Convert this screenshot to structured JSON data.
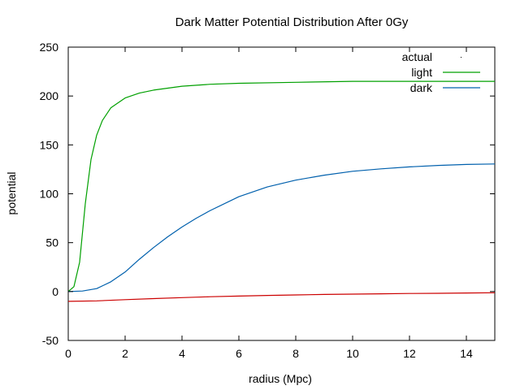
{
  "chart_data": {
    "type": "line",
    "title": "Dark Matter Potential Distribution After 0Gy",
    "xlabel": "radius (Mpc)",
    "ylabel": "potential",
    "xlim": [
      0,
      15
    ],
    "ylim": [
      -50,
      250
    ],
    "xticks": [
      0,
      2,
      4,
      6,
      8,
      10,
      12,
      14
    ],
    "yticks": [
      -50,
      0,
      50,
      100,
      150,
      200,
      250
    ],
    "xtick_labels": [
      "0",
      "2",
      "4",
      "6",
      "8",
      "10",
      "12",
      "14"
    ],
    "ytick_labels": [
      "-50",
      "0",
      "50",
      "100",
      "150",
      "200",
      "250"
    ],
    "grid": false,
    "legend_position": "top-right",
    "series": [
      {
        "name": "actual",
        "style": "dots",
        "color": "#cc0000",
        "x": [
          0,
          1,
          2,
          3,
          4,
          5,
          6,
          7,
          8,
          9,
          10,
          11,
          12,
          13,
          14,
          15
        ],
        "y": [
          -10,
          -9.5,
          -8.3,
          -7.2,
          -6.2,
          -5.3,
          -4.6,
          -4.0,
          -3.5,
          -3.0,
          -2.6,
          -2.3,
          -2.0,
          -1.8,
          -1.5,
          -1.2
        ]
      },
      {
        "name": "light",
        "style": "line",
        "color": "#00a000",
        "x": [
          0,
          0.2,
          0.4,
          0.6,
          0.8,
          1.0,
          1.2,
          1.5,
          2.0,
          2.5,
          3.0,
          4.0,
          5.0,
          6.0,
          8.0,
          10.0,
          12.0,
          15.0
        ],
        "y": [
          0,
          5,
          30,
          90,
          135,
          160,
          175,
          188,
          198,
          203,
          206,
          210,
          212,
          213,
          214,
          215,
          215,
          215
        ]
      },
      {
        "name": "dark",
        "style": "line",
        "color": "#0060ad",
        "x": [
          0,
          0.5,
          1.0,
          1.5,
          2.0,
          2.5,
          3.0,
          3.5,
          4.0,
          4.5,
          5.0,
          6.0,
          7.0,
          8.0,
          9.0,
          10.0,
          11.0,
          12.0,
          13.0,
          14.0,
          15.0
        ],
        "y": [
          0,
          0.5,
          3,
          10,
          20,
          33,
          45,
          56,
          66,
          75,
          83,
          97,
          107,
          114,
          119,
          123,
          125.5,
          127.5,
          129,
          130,
          130.5
        ]
      }
    ]
  }
}
